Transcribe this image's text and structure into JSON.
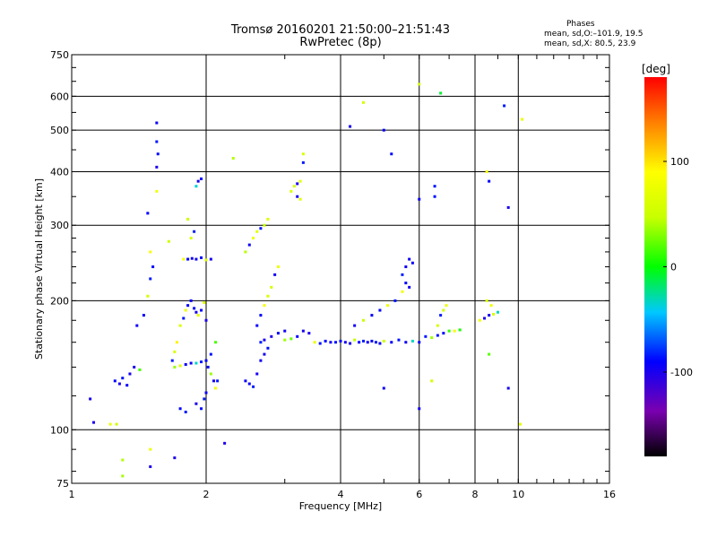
{
  "chart_data": {
    "type": "scatter",
    "title": "Tromsø 20160201 21:50:00–21:51:43",
    "subtitle": "RwPretec (8p)",
    "xlabel": "Frequency [MHz]",
    "ylabel": "Stationary phase Virtual Height [km]",
    "x_scale": "log",
    "y_scale": "log",
    "xlim": [
      1,
      16
    ],
    "ylim": [
      75,
      750
    ],
    "x_ticks": [
      1,
      2,
      4,
      6,
      8,
      10,
      16
    ],
    "y_ticks": [
      75,
      100,
      200,
      300,
      400,
      500,
      600,
      750
    ],
    "grid": true,
    "stats": {
      "heading": "Phases",
      "line_o": "mean, sd,O:–101.9, 19.5",
      "line_x": "mean, sd,X: 80.5, 23.9"
    },
    "colorbar": {
      "label": "[deg]",
      "range": [
        -180,
        180
      ],
      "ticks": [
        100,
        0,
        -100
      ]
    },
    "series": [
      {
        "values": [
          [
            1.25,
            130
          ],
          [
            1.28,
            128
          ],
          [
            1.3,
            132
          ],
          [
            1.33,
            127
          ],
          [
            1.35,
            135
          ],
          [
            1.38,
            140
          ],
          [
            1.42,
            138
          ],
          [
            1.4,
            175
          ],
          [
            1.45,
            185
          ],
          [
            1.48,
            205
          ],
          [
            1.5,
            225
          ],
          [
            1.52,
            240
          ],
          [
            1.5,
            260
          ],
          [
            1.55,
            360
          ],
          [
            1.55,
            410
          ],
          [
            1.56,
            440
          ],
          [
            1.55,
            470
          ],
          [
            1.55,
            520
          ],
          [
            1.48,
            320
          ],
          [
            1.68,
            145
          ],
          [
            1.7,
            152
          ],
          [
            1.72,
            160
          ],
          [
            1.75,
            175
          ],
          [
            1.78,
            182
          ],
          [
            1.8,
            190
          ],
          [
            1.82,
            195
          ],
          [
            1.85,
            200
          ],
          [
            1.88,
            192
          ],
          [
            1.9,
            188
          ],
          [
            1.92,
            185
          ],
          [
            1.95,
            190
          ],
          [
            1.98,
            198
          ],
          [
            2.0,
            180
          ],
          [
            1.7,
            140
          ],
          [
            1.75,
            141
          ],
          [
            1.8,
            142
          ],
          [
            1.85,
            143
          ],
          [
            1.9,
            143
          ],
          [
            1.95,
            144
          ],
          [
            2.0,
            145
          ],
          [
            1.75,
            112
          ],
          [
            1.8,
            110
          ],
          [
            1.9,
            115
          ],
          [
            1.95,
            112
          ],
          [
            1.98,
            118
          ],
          [
            2.0,
            122
          ],
          [
            1.78,
            250
          ],
          [
            1.82,
            250
          ],
          [
            1.86,
            251
          ],
          [
            1.9,
            250
          ],
          [
            1.95,
            252
          ],
          [
            2.0,
            249
          ],
          [
            2.05,
            250
          ],
          [
            1.85,
            280
          ],
          [
            1.88,
            290
          ],
          [
            1.82,
            310
          ],
          [
            1.92,
            380
          ],
          [
            1.95,
            385
          ],
          [
            1.9,
            370
          ],
          [
            2.02,
            140
          ],
          [
            2.05,
            135
          ],
          [
            2.08,
            130
          ],
          [
            2.1,
            125
          ],
          [
            2.12,
            130
          ],
          [
            2.05,
            150
          ],
          [
            2.1,
            160
          ],
          [
            2.45,
            130
          ],
          [
            2.5,
            128
          ],
          [
            2.55,
            126
          ],
          [
            2.6,
            135
          ],
          [
            2.65,
            145
          ],
          [
            2.7,
            150
          ],
          [
            2.75,
            155
          ],
          [
            2.45,
            260
          ],
          [
            2.5,
            270
          ],
          [
            2.55,
            280
          ],
          [
            2.6,
            290
          ],
          [
            2.65,
            295
          ],
          [
            2.7,
            300
          ],
          [
            2.75,
            310
          ],
          [
            2.6,
            175
          ],
          [
            2.65,
            185
          ],
          [
            2.7,
            195
          ],
          [
            2.75,
            205
          ],
          [
            2.8,
            215
          ],
          [
            2.85,
            230
          ],
          [
            2.9,
            240
          ],
          [
            2.65,
            160
          ],
          [
            2.7,
            162
          ],
          [
            2.8,
            165
          ],
          [
            2.9,
            168
          ],
          [
            3.0,
            170
          ],
          [
            3.1,
            360
          ],
          [
            3.15,
            370
          ],
          [
            3.2,
            375
          ],
          [
            3.25,
            380
          ],
          [
            3.2,
            350
          ],
          [
            3.25,
            345
          ],
          [
            3.3,
            420
          ],
          [
            3.3,
            440
          ],
          [
            3.0,
            162
          ],
          [
            3.1,
            163
          ],
          [
            3.2,
            165
          ],
          [
            3.3,
            170
          ],
          [
            3.4,
            168
          ],
          [
            3.5,
            160
          ],
          [
            3.6,
            159
          ],
          [
            3.7,
            161
          ],
          [
            3.8,
            160
          ],
          [
            3.9,
            160
          ],
          [
            4.0,
            161
          ],
          [
            4.1,
            160
          ],
          [
            4.2,
            159
          ],
          [
            4.3,
            162
          ],
          [
            4.4,
            160
          ],
          [
            4.5,
            161
          ],
          [
            4.6,
            160
          ],
          [
            4.7,
            161
          ],
          [
            4.8,
            160
          ],
          [
            4.9,
            159
          ],
          [
            5.0,
            161
          ],
          [
            5.2,
            160
          ],
          [
            5.4,
            162
          ],
          [
            5.6,
            160
          ],
          [
            5.8,
            161
          ],
          [
            6.0,
            160
          ],
          [
            4.3,
            175
          ],
          [
            4.5,
            180
          ],
          [
            4.7,
            185
          ],
          [
            4.9,
            190
          ],
          [
            5.1,
            195
          ],
          [
            5.3,
            200
          ],
          [
            5.5,
            210
          ],
          [
            5.5,
            230
          ],
          [
            5.6,
            240
          ],
          [
            5.7,
            250
          ],
          [
            5.8,
            245
          ],
          [
            5.6,
            220
          ],
          [
            5.7,
            215
          ],
          [
            6.2,
            165
          ],
          [
            6.4,
            164
          ],
          [
            6.6,
            166
          ],
          [
            6.8,
            168
          ],
          [
            7.0,
            170
          ],
          [
            7.2,
            170
          ],
          [
            7.4,
            171
          ],
          [
            6.6,
            175
          ],
          [
            6.7,
            185
          ],
          [
            6.8,
            190
          ],
          [
            6.9,
            195
          ],
          [
            8.2,
            180
          ],
          [
            8.4,
            182
          ],
          [
            8.6,
            185
          ],
          [
            8.8,
            186
          ],
          [
            9.0,
            188
          ],
          [
            8.5,
            200
          ],
          [
            8.7,
            195
          ],
          [
            6.0,
            640
          ],
          [
            6.7,
            610
          ],
          [
            4.2,
            510
          ],
          [
            4.5,
            580
          ],
          [
            5.0,
            500
          ],
          [
            5.2,
            440
          ],
          [
            9.3,
            570
          ],
          [
            10.2,
            530
          ],
          [
            6.5,
            370
          ],
          [
            6.5,
            350
          ],
          [
            8.5,
            400
          ],
          [
            8.6,
            380
          ],
          [
            9.5,
            330
          ],
          [
            6.0,
            345
          ],
          [
            1.1,
            118
          ],
          [
            1.12,
            104
          ],
          [
            1.22,
            103
          ],
          [
            1.26,
            103
          ],
          [
            1.3,
            78
          ],
          [
            1.3,
            85
          ],
          [
            1.5,
            90
          ],
          [
            1.5,
            82
          ],
          [
            1.7,
            86
          ],
          [
            2.2,
            93
          ],
          [
            1.65,
            275
          ],
          [
            2.3,
            430
          ],
          [
            6.0,
            112
          ],
          [
            5.0,
            125
          ],
          [
            6.4,
            130
          ],
          [
            10.1,
            103
          ],
          [
            9.5,
            125
          ],
          [
            8.6,
            150
          ]
        ]
      }
    ]
  }
}
